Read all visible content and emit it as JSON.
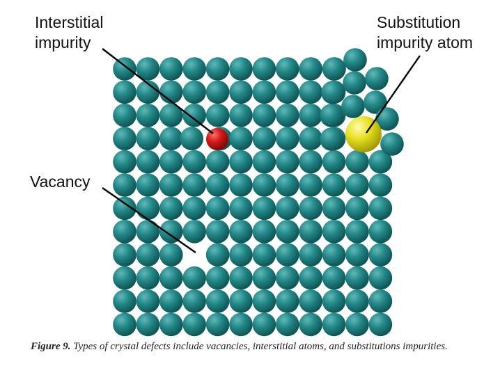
{
  "labels": {
    "interstitial_line1": "Interstitial",
    "interstitial_line2": "impurity",
    "substitution_line1": "Substitution",
    "substitution_line2": "impurity atom",
    "vacancy": "Vacancy"
  },
  "caption": {
    "prefix": "Figure 9.",
    "text": "Types of crystal defects include vacancies, interstitial atoms, and substitutions impurities."
  },
  "colors": {
    "host_atom": "#1f7f7f",
    "interstitial_atom": "#cc1111",
    "substitution_atom": "#e6e020",
    "leader_line": "#000000"
  },
  "lattice": {
    "rows": 12,
    "columns": 12
  }
}
